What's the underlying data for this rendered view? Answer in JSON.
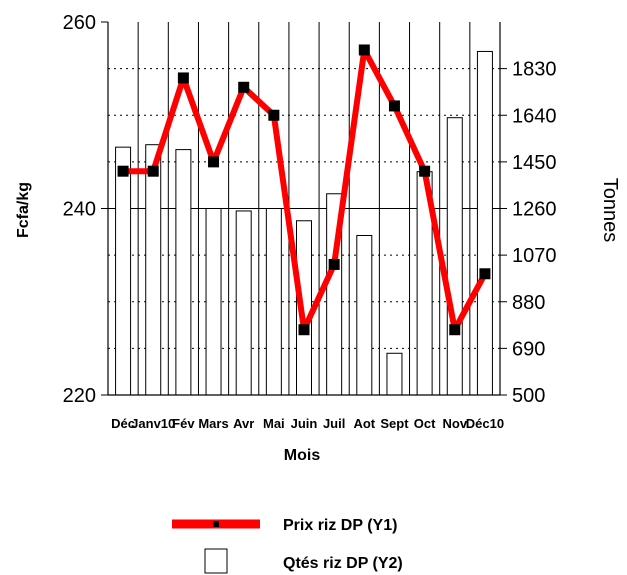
{
  "chart_data": {
    "type": "bar+line",
    "categories": [
      "Déc",
      "Janv10",
      "Fév",
      "Mars",
      "Avr",
      "Mai",
      "Juin",
      "Juil",
      "Aoû",
      "Sept",
      "Oct",
      "Nov",
      "Déc10"
    ],
    "category_labels": [
      "Déc",
      "Janv10",
      "Fév",
      "Mars",
      "Avr",
      "Mai",
      "Juin",
      "Juil",
      "Aot",
      "Sept",
      "Oct",
      "Nov",
      "Déc10"
    ],
    "series": [
      {
        "name": "Prix riz DP (Y1)",
        "type": "line",
        "axis": "y1",
        "color": "#ff0000",
        "values": [
          244,
          244,
          254,
          245,
          253,
          250,
          227,
          234,
          257,
          251,
          244,
          227,
          233
        ]
      },
      {
        "name": "Qtés riz DP (Y2)",
        "type": "bar",
        "axis": "y2",
        "color": "#ffffff",
        "values": [
          1510,
          1520,
          1500,
          1260,
          1250,
          1260,
          1210,
          1320,
          1150,
          670,
          1410,
          1630,
          1900
        ]
      }
    ],
    "xlabel": "Mois",
    "ylabel": "Fcfa/kg",
    "y2label": "Tonnes",
    "ylim": [
      220,
      260
    ],
    "y2lim": [
      500,
      2020
    ],
    "yticks": [
      220,
      240,
      260
    ],
    "y2ticks": [
      500,
      690,
      880,
      1070,
      1260,
      1450,
      1640,
      1830
    ],
    "grid": "dotted horizontal and vertical",
    "legend_position": "bottom"
  }
}
